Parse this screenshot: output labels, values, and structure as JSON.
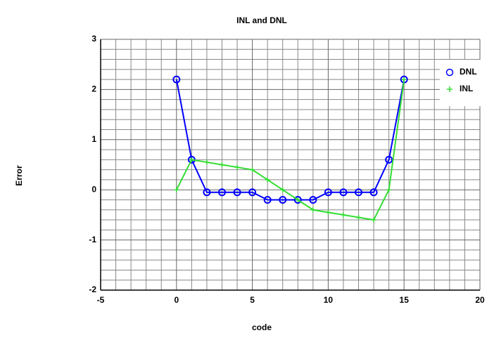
{
  "chart_data": {
    "type": "line",
    "title": "INL and DNL",
    "x_label": "code",
    "y_label": "Error",
    "x": [
      0,
      1,
      2,
      3,
      4,
      5,
      6,
      7,
      8,
      9,
      10,
      11,
      12,
      13,
      14,
      15
    ],
    "series": [
      {
        "name": "DNL",
        "color": "#0000ff",
        "marker": "circle",
        "values": [
          2.2,
          0.6,
          -0.05,
          -0.05,
          -0.05,
          -0.05,
          -0.2,
          -0.2,
          -0.2,
          -0.2,
          -0.05,
          -0.05,
          -0.05,
          -0.05,
          0.6,
          2.2
        ]
      },
      {
        "name": "INL",
        "color": "#33dd33",
        "marker": "plus",
        "values": [
          0,
          0.6,
          0.55,
          0.5,
          0.45,
          0.4,
          0.2,
          0,
          -0.2,
          -0.4,
          -0.45,
          -0.5,
          -0.55,
          -0.6,
          0,
          2.2
        ]
      }
    ],
    "xlim": [
      -5,
      20
    ],
    "ylim": [
      -2,
      3
    ],
    "xticks": [
      -5,
      0,
      5,
      10,
      15,
      20
    ],
    "yticks": [
      -2,
      -1,
      0,
      1,
      2,
      3
    ],
    "grid": true,
    "legend": "upper right"
  }
}
